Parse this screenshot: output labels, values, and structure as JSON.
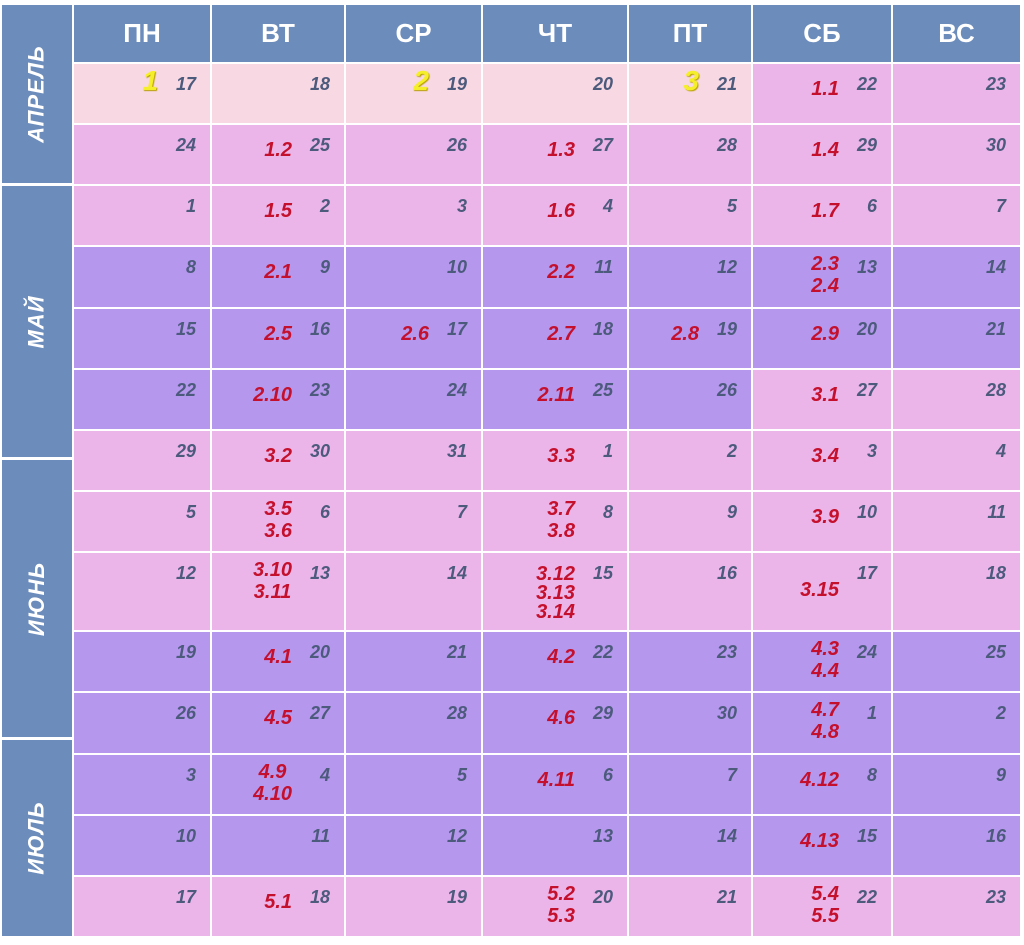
{
  "weekdays": [
    "ПН",
    "ВТ",
    "СР",
    "ЧТ",
    "ПТ",
    "СБ",
    "ВС"
  ],
  "months": [
    "АПРЕЛЬ",
    "МАЙ",
    "ИЮНЬ",
    "ИЮЛЬ"
  ],
  "colors": {
    "header": "#6c8cbc",
    "light_pink": "#f8d8e3",
    "pink": "#ecb5ea",
    "violet": "#b597ee",
    "task": "#c4102c",
    "day": "#4c5a7c",
    "marker": "#f5ee2a"
  },
  "rows": [
    [
      {
        "d": "17",
        "bg": "l",
        "m": "1"
      },
      {
        "d": "18",
        "bg": "l"
      },
      {
        "d": "19",
        "bg": "l",
        "m": "2"
      },
      {
        "d": "20",
        "bg": "l"
      },
      {
        "d": "21",
        "bg": "l",
        "m": "3"
      },
      {
        "d": "22",
        "bg": "p",
        "t": [
          "1.1"
        ]
      },
      {
        "d": "23",
        "bg": "p"
      }
    ],
    [
      {
        "d": "24",
        "bg": "p"
      },
      {
        "d": "25",
        "bg": "p",
        "t": [
          "1.2"
        ]
      },
      {
        "d": "26",
        "bg": "p"
      },
      {
        "d": "27",
        "bg": "p",
        "t": [
          "1.3"
        ]
      },
      {
        "d": "28",
        "bg": "p"
      },
      {
        "d": "29",
        "bg": "p",
        "t": [
          "1.4"
        ]
      },
      {
        "d": "30",
        "bg": "p"
      }
    ],
    [
      {
        "d": "1",
        "bg": "p"
      },
      {
        "d": "2",
        "bg": "p",
        "t": [
          "1.5"
        ]
      },
      {
        "d": "3",
        "bg": "p"
      },
      {
        "d": "4",
        "bg": "p",
        "t": [
          "1.6"
        ]
      },
      {
        "d": "5",
        "bg": "p"
      },
      {
        "d": "6",
        "bg": "p",
        "t": [
          "1.7"
        ]
      },
      {
        "d": "7",
        "bg": "p"
      }
    ],
    [
      {
        "d": "8",
        "bg": "v"
      },
      {
        "d": "9",
        "bg": "v",
        "t": [
          "2.1"
        ]
      },
      {
        "d": "10",
        "bg": "v"
      },
      {
        "d": "11",
        "bg": "v",
        "t": [
          "2.2"
        ]
      },
      {
        "d": "12",
        "bg": "v"
      },
      {
        "d": "13",
        "bg": "v",
        "t": [
          "2.3",
          "2.4"
        ]
      },
      {
        "d": "14",
        "bg": "v"
      }
    ],
    [
      {
        "d": "15",
        "bg": "v"
      },
      {
        "d": "16",
        "bg": "v",
        "t": [
          "2.5"
        ]
      },
      {
        "d": "17",
        "bg": "v",
        "t": [
          "2.6"
        ]
      },
      {
        "d": "18",
        "bg": "v",
        "t": [
          "2.7"
        ]
      },
      {
        "d": "19",
        "bg": "v",
        "t": [
          "2.8"
        ]
      },
      {
        "d": "20",
        "bg": "v",
        "t": [
          "2.9"
        ]
      },
      {
        "d": "21",
        "bg": "v"
      }
    ],
    [
      {
        "d": "22",
        "bg": "v"
      },
      {
        "d": "23",
        "bg": "v",
        "t": [
          "2.10"
        ]
      },
      {
        "d": "24",
        "bg": "v"
      },
      {
        "d": "25",
        "bg": "v",
        "t": [
          "2.11"
        ]
      },
      {
        "d": "26",
        "bg": "v"
      },
      {
        "d": "27",
        "bg": "p",
        "t": [
          "3.1"
        ]
      },
      {
        "d": "28",
        "bg": "p"
      }
    ],
    [
      {
        "d": "29",
        "bg": "p"
      },
      {
        "d": "30",
        "bg": "p",
        "t": [
          "3.2"
        ]
      },
      {
        "d": "31",
        "bg": "p"
      },
      {
        "d": "1",
        "bg": "p",
        "t": [
          "3.3"
        ]
      },
      {
        "d": "2",
        "bg": "p"
      },
      {
        "d": "3",
        "bg": "p",
        "t": [
          "3.4"
        ]
      },
      {
        "d": "4",
        "bg": "p"
      }
    ],
    [
      {
        "d": "5",
        "bg": "p"
      },
      {
        "d": "6",
        "bg": "p",
        "t": [
          "3.5",
          "3.6"
        ]
      },
      {
        "d": "7",
        "bg": "p"
      },
      {
        "d": "8",
        "bg": "p",
        "t": [
          "3.7",
          "3.8"
        ]
      },
      {
        "d": "9",
        "bg": "p"
      },
      {
        "d": "10",
        "bg": "p",
        "t": [
          "3.9"
        ]
      },
      {
        "d": "11",
        "bg": "p"
      }
    ],
    [
      {
        "d": "12",
        "bg": "p"
      },
      {
        "d": "13",
        "bg": "p",
        "t": [
          "3.10",
          "3.11"
        ]
      },
      {
        "d": "14",
        "bg": "p"
      },
      {
        "d": "15",
        "bg": "p",
        "t": [
          "3.12",
          "3.13",
          "3.14"
        ]
      },
      {
        "d": "16",
        "bg": "p"
      },
      {
        "d": "17",
        "bg": "p",
        "t": [
          "3.15"
        ]
      },
      {
        "d": "18",
        "bg": "p"
      }
    ],
    [
      {
        "d": "19",
        "bg": "v"
      },
      {
        "d": "20",
        "bg": "v",
        "t": [
          "4.1"
        ]
      },
      {
        "d": "21",
        "bg": "v"
      },
      {
        "d": "22",
        "bg": "v",
        "t": [
          "4.2"
        ]
      },
      {
        "d": "23",
        "bg": "v"
      },
      {
        "d": "24",
        "bg": "v",
        "t": [
          "4.3",
          "4.4"
        ]
      },
      {
        "d": "25",
        "bg": "v"
      }
    ],
    [
      {
        "d": "26",
        "bg": "v"
      },
      {
        "d": "27",
        "bg": "v",
        "t": [
          "4.5"
        ]
      },
      {
        "d": "28",
        "bg": "v"
      },
      {
        "d": "29",
        "bg": "v",
        "t": [
          "4.6"
        ]
      },
      {
        "d": "30",
        "bg": "v"
      },
      {
        "d": "1",
        "bg": "v",
        "t": [
          "4.7",
          "4.8"
        ]
      },
      {
        "d": "2",
        "bg": "v"
      }
    ],
    [
      {
        "d": "3",
        "bg": "v"
      },
      {
        "d": "4",
        "bg": "v",
        "t": [
          "4.9",
          "4.10"
        ]
      },
      {
        "d": "5",
        "bg": "v"
      },
      {
        "d": "6",
        "bg": "v",
        "t": [
          "4.11"
        ]
      },
      {
        "d": "7",
        "bg": "v"
      },
      {
        "d": "8",
        "bg": "v",
        "t": [
          "4.12"
        ]
      },
      {
        "d": "9",
        "bg": "v"
      }
    ],
    [
      {
        "d": "10",
        "bg": "v"
      },
      {
        "d": "11",
        "bg": "v"
      },
      {
        "d": "12",
        "bg": "v"
      },
      {
        "d": "13",
        "bg": "v"
      },
      {
        "d": "14",
        "bg": "v"
      },
      {
        "d": "15",
        "bg": "v",
        "t": [
          "4.13"
        ]
      },
      {
        "d": "16",
        "bg": "v"
      }
    ],
    [
      {
        "d": "17",
        "bg": "p"
      },
      {
        "d": "18",
        "bg": "p",
        "t": [
          "5.1"
        ]
      },
      {
        "d": "19",
        "bg": "p"
      },
      {
        "d": "20",
        "bg": "p",
        "t": [
          "5.2",
          "5.3"
        ]
      },
      {
        "d": "21",
        "bg": "p"
      },
      {
        "d": "22",
        "bg": "p",
        "t": [
          "5.4",
          "5.5"
        ]
      },
      {
        "d": "23",
        "bg": "p"
      }
    ]
  ]
}
